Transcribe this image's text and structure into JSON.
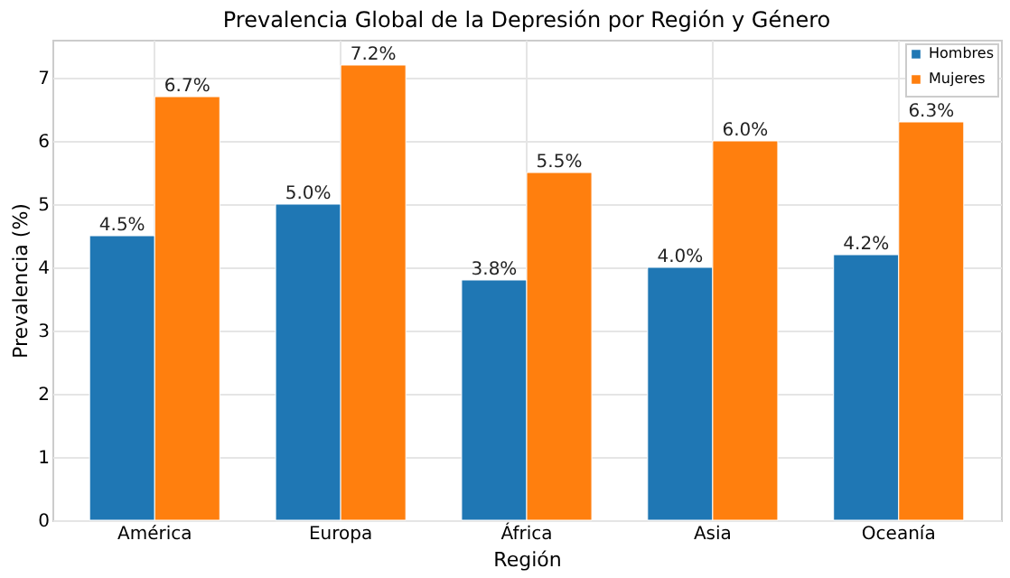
{
  "chart_data": {
    "type": "bar",
    "title": "Prevalencia Global de la Depresión por Región y Género",
    "xlabel": "Región",
    "ylabel": "Prevalencia (%)",
    "categories": [
      "América",
      "Europa",
      "África",
      "Asia",
      "Oceanía"
    ],
    "series": [
      {
        "name": "Hombres",
        "color": "#1f77b4",
        "values": [
          4.5,
          5.0,
          3.8,
          4.0,
          4.2
        ],
        "value_labels": [
          "4.5%",
          "5.0%",
          "3.8%",
          "4.0%",
          "4.2%"
        ]
      },
      {
        "name": "Mujeres",
        "color": "#ff7f0e",
        "values": [
          6.7,
          7.2,
          5.5,
          6.0,
          6.3
        ],
        "value_labels": [
          "6.7%",
          "7.2%",
          "5.5%",
          "6.0%",
          "6.3%"
        ]
      }
    ],
    "ylim": [
      0,
      7.6
    ],
    "yticks": [
      0,
      1,
      2,
      3,
      4,
      5,
      6,
      7
    ],
    "grid": true,
    "legend": "top right"
  }
}
